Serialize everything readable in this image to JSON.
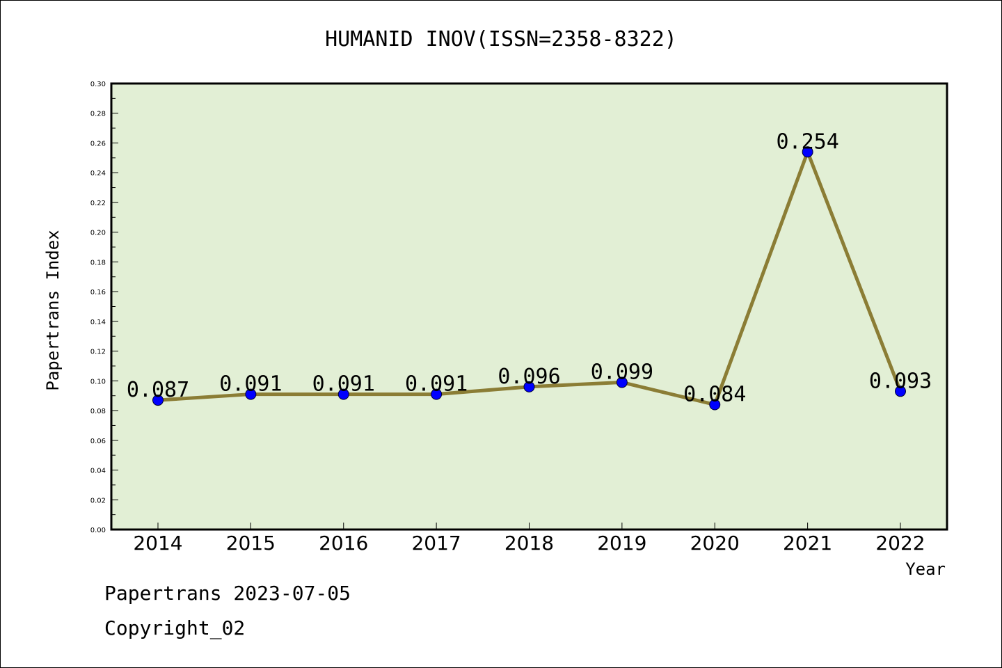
{
  "chart_data": {
    "type": "line",
    "title": "HUMANID INOV(ISSN=2358-8322)",
    "xlabel": "Year",
    "ylabel": "Papertrans Index",
    "categories": [
      "2014",
      "2015",
      "2016",
      "2017",
      "2018",
      "2019",
      "2020",
      "2021",
      "2022"
    ],
    "values": [
      0.087,
      0.091,
      0.091,
      0.091,
      0.096,
      0.099,
      0.084,
      0.254,
      0.093
    ],
    "data_labels": [
      "0.087",
      "0.091",
      "0.091",
      "0.091",
      "0.096",
      "0.099",
      "0.084",
      "0.254",
      "0.093"
    ],
    "ylim": [
      0,
      0.3
    ],
    "yticks": [
      "0.00",
      "0.02",
      "0.04",
      "0.06",
      "0.08",
      "0.10",
      "0.12",
      "0.14",
      "0.16",
      "0.18",
      "0.20",
      "0.22",
      "0.24",
      "0.26",
      "0.28",
      "0.30"
    ],
    "grid": false,
    "colors": {
      "plot_background": "#e2efd5",
      "line": "#8b7d35",
      "marker": "#0000ff"
    }
  },
  "footer": {
    "date_line": "Papertrans 2023-07-05",
    "copyright_line": "Copyright_02"
  }
}
